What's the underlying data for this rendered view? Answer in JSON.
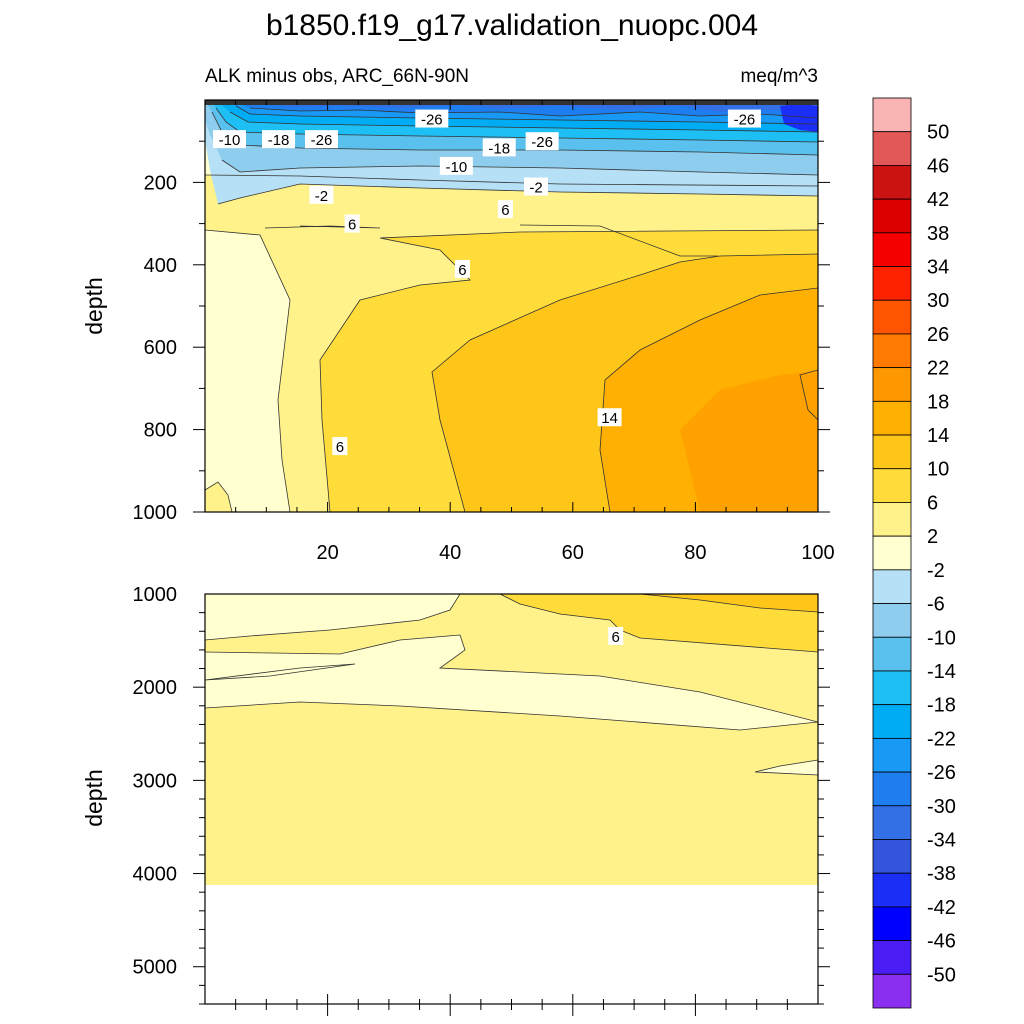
{
  "chart_data": {
    "type": "contour",
    "title": "b1850.f19_g17.validation_nuopc.004",
    "subtitle_left": "ALK minus obs, ARC_66N-90N",
    "subtitle_right": "meq/m^3",
    "ylabel": "depth",
    "x_ticks": [
      "20",
      "40",
      "60",
      "80",
      "100"
    ],
    "x_tick_values": [
      20,
      40,
      60,
      80,
      100
    ],
    "xlim": [
      0,
      100
    ],
    "upper_panel": {
      "ylim": [
        0,
        1000
      ],
      "y_ticks": [
        "200",
        "400",
        "600",
        "800",
        "1000"
      ],
      "y_tick_values": [
        200,
        400,
        600,
        800,
        1000
      ],
      "contour_labels": [
        {
          "text": "-26",
          "x": 37,
          "y": 45
        },
        {
          "text": "-26",
          "x": 88,
          "y": 45
        },
        {
          "text": "-10",
          "x": 4,
          "y": 95
        },
        {
          "text": "-18",
          "x": 12,
          "y": 95
        },
        {
          "text": "-26",
          "x": 19,
          "y": 95
        },
        {
          "text": "-18",
          "x": 48,
          "y": 115
        },
        {
          "text": "-26",
          "x": 55,
          "y": 100
        },
        {
          "text": "-10",
          "x": 41,
          "y": 160
        },
        {
          "text": "-2",
          "x": 19,
          "y": 230
        },
        {
          "text": "-2",
          "x": 54,
          "y": 210
        },
        {
          "text": "6",
          "x": 24,
          "y": 300
        },
        {
          "text": "6",
          "x": 49,
          "y": 265
        },
        {
          "text": "6",
          "x": 42,
          "y": 410
        },
        {
          "text": "14",
          "x": 66,
          "y": 770
        },
        {
          "text": "6",
          "x": 22,
          "y": 840
        }
      ]
    },
    "lower_panel": {
      "ylim": [
        1000,
        5400
      ],
      "y_ticks": [
        "1000",
        "2000",
        "3000",
        "4000",
        "5000"
      ],
      "y_tick_values": [
        1000,
        2000,
        3000,
        4000,
        5000
      ],
      "ocean_bottom_depth": 4100,
      "contour_labels": [
        {
          "text": "6",
          "x": 67,
          "y": 1450
        }
      ]
    },
    "colorbar": {
      "labels": [
        "50",
        "46",
        "42",
        "38",
        "34",
        "30",
        "26",
        "22",
        "18",
        "14",
        "10",
        "6",
        "2",
        "-2",
        "-6",
        "-10",
        "-14",
        "-18",
        "-22",
        "-26",
        "-30",
        "-34",
        "-38",
        "-42",
        "-46",
        "-50"
      ],
      "colors": [
        "#fbb4b4",
        "#e25757",
        "#cc1313",
        "#dd0000",
        "#f50000",
        "#ff2200",
        "#ff5500",
        "#ff7a00",
        "#ff9800",
        "#ffb000",
        "#ffc61a",
        "#ffdc3a",
        "#fff28a",
        "#ffffd0",
        "#b6e0f5",
        "#8ecdee",
        "#5ac1ee",
        "#1ebff5",
        "#00adf5",
        "#1799f5",
        "#1e7ef0",
        "#3370e6",
        "#3355dd",
        "#1a2ef5",
        "#0000ff",
        "#4a1df5",
        "#8a2ef0"
      ]
    }
  }
}
